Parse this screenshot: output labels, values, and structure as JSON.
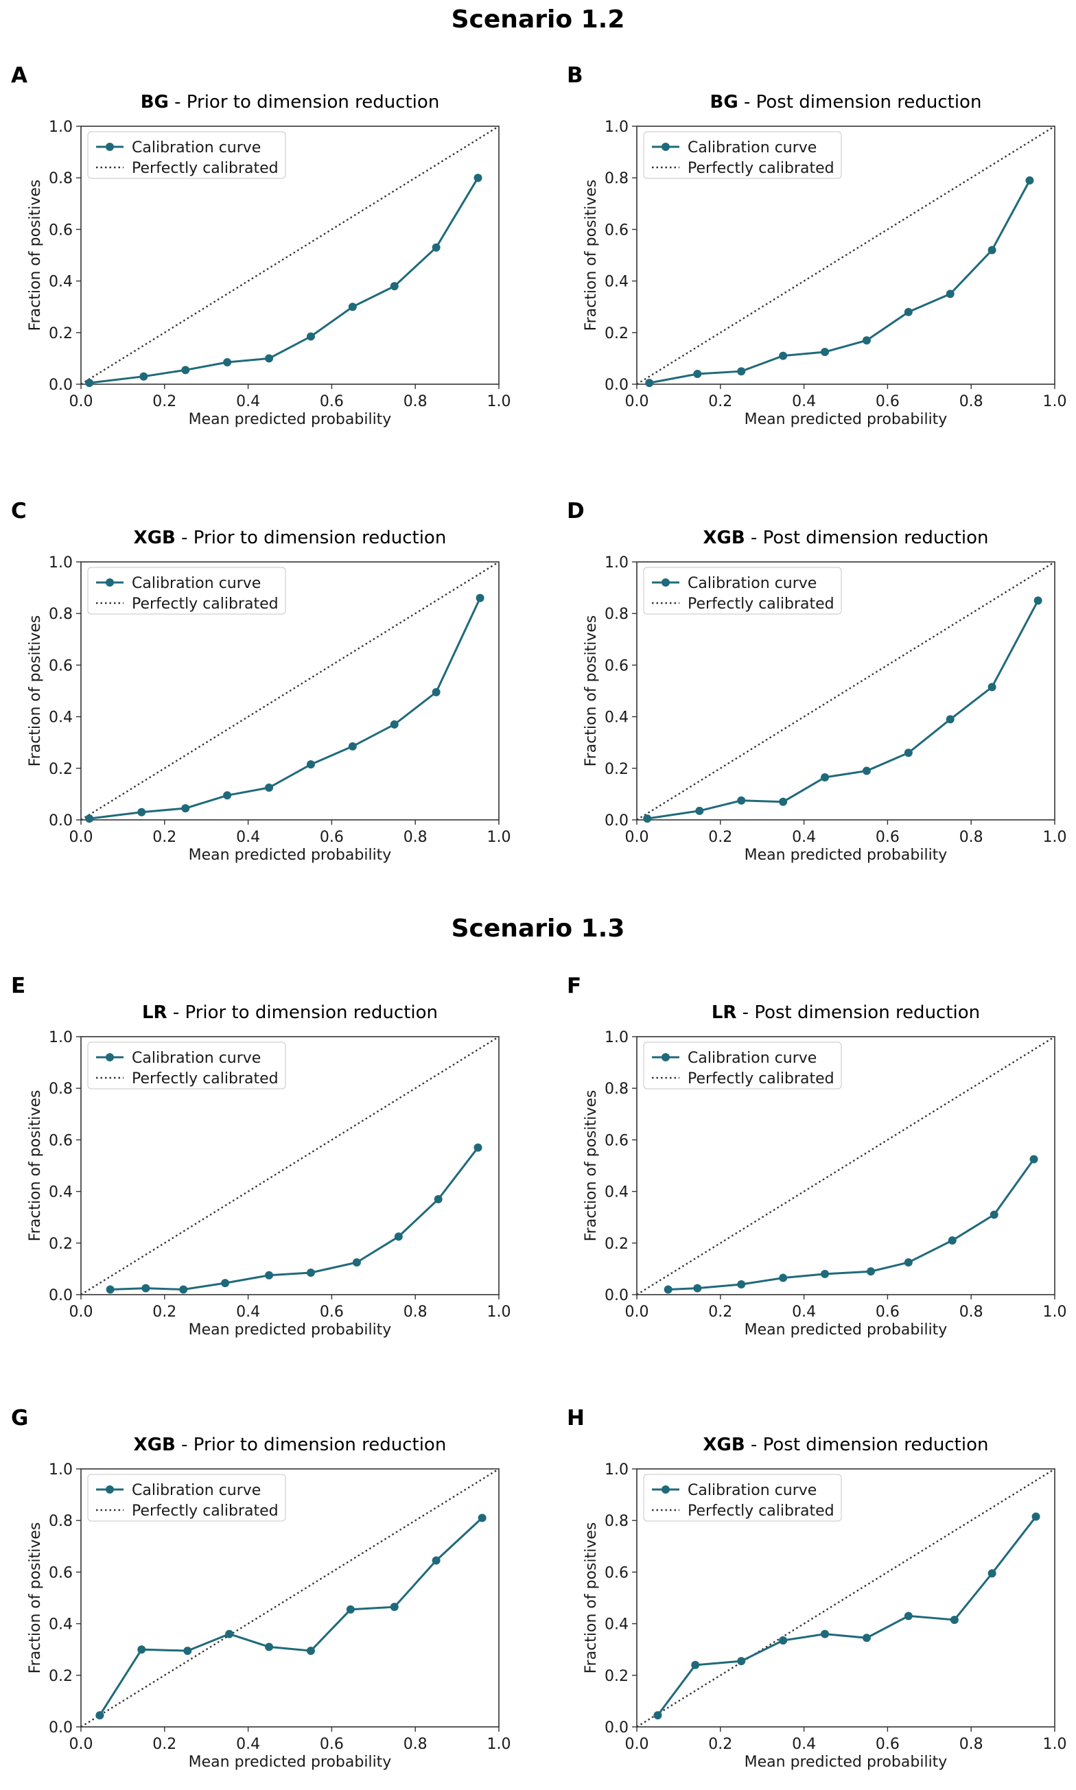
{
  "scenarios": [
    {
      "title": "Scenario 1.2"
    },
    {
      "title": "Scenario 1.3"
    }
  ],
  "colors": {
    "curve": "#1f6a7a",
    "diagonal": "#333333",
    "axes": "#333333"
  },
  "chart_data": [
    {
      "type": "line",
      "panel": "A",
      "title_model": "BG",
      "title_rest": " - Prior to dimension reduction",
      "xlabel": "Mean predicted probability",
      "ylabel": "Fraction of positives",
      "xlim": [
        0.0,
        1.0
      ],
      "ylim": [
        0.0,
        1.0
      ],
      "xticks": [
        "0.0",
        "0.2",
        "0.4",
        "0.6",
        "0.8",
        "1.0"
      ],
      "yticks": [
        "0.0",
        "0.2",
        "0.4",
        "0.6",
        "0.8",
        "1.0"
      ],
      "legend": [
        "Calibration curve",
        "Perfectly calibrated"
      ],
      "legend_position": "upper-left",
      "series": [
        {
          "name": "Calibration curve",
          "x": [
            0.02,
            0.15,
            0.25,
            0.35,
            0.45,
            0.55,
            0.65,
            0.75,
            0.85,
            0.95
          ],
          "y": [
            0.005,
            0.03,
            0.055,
            0.085,
            0.1,
            0.185,
            0.3,
            0.38,
            0.53,
            0.8
          ]
        }
      ]
    },
    {
      "type": "line",
      "panel": "B",
      "title_model": "BG",
      "title_rest": " - Post dimension reduction",
      "xlabel": "Mean predicted probability",
      "ylabel": "Fraction of positives",
      "xlim": [
        0.0,
        1.0
      ],
      "ylim": [
        0.0,
        1.0
      ],
      "xticks": [
        "0.0",
        "0.2",
        "0.4",
        "0.6",
        "0.8",
        "1.0"
      ],
      "yticks": [
        "0.0",
        "0.2",
        "0.4",
        "0.6",
        "0.8",
        "1.0"
      ],
      "legend": [
        "Calibration curve",
        "Perfectly calibrated"
      ],
      "legend_position": "upper-left",
      "series": [
        {
          "name": "Calibration curve",
          "x": [
            0.03,
            0.145,
            0.25,
            0.35,
            0.45,
            0.55,
            0.65,
            0.75,
            0.85,
            0.94
          ],
          "y": [
            0.005,
            0.04,
            0.05,
            0.11,
            0.125,
            0.17,
            0.28,
            0.35,
            0.52,
            0.79
          ]
        }
      ]
    },
    {
      "type": "line",
      "panel": "C",
      "title_model": "XGB",
      "title_rest": " - Prior to dimension reduction",
      "xlabel": "Mean predicted probability",
      "ylabel": "Fraction of positives",
      "xlim": [
        0.0,
        1.0
      ],
      "ylim": [
        0.0,
        1.0
      ],
      "xticks": [
        "0.0",
        "0.2",
        "0.4",
        "0.6",
        "0.8",
        "1.0"
      ],
      "yticks": [
        "0.0",
        "0.2",
        "0.4",
        "0.6",
        "0.8",
        "1.0"
      ],
      "legend": [
        "Calibration curve",
        "Perfectly calibrated"
      ],
      "legend_position": "upper-left",
      "series": [
        {
          "name": "Calibration curve",
          "x": [
            0.02,
            0.145,
            0.25,
            0.35,
            0.45,
            0.55,
            0.65,
            0.75,
            0.85,
            0.955
          ],
          "y": [
            0.005,
            0.03,
            0.045,
            0.095,
            0.125,
            0.215,
            0.285,
            0.37,
            0.495,
            0.86
          ]
        }
      ]
    },
    {
      "type": "line",
      "panel": "D",
      "title_model": "XGB",
      "title_rest": " - Post dimension reduction",
      "xlabel": "Mean predicted probability",
      "ylabel": "Fraction of positives",
      "xlim": [
        0.0,
        1.0
      ],
      "ylim": [
        0.0,
        1.0
      ],
      "xticks": [
        "0.0",
        "0.2",
        "0.4",
        "0.6",
        "0.8",
        "1.0"
      ],
      "yticks": [
        "0.0",
        "0.2",
        "0.4",
        "0.6",
        "0.8",
        "1.0"
      ],
      "legend": [
        "Calibration curve",
        "Perfectly calibrated"
      ],
      "legend_position": "upper-left",
      "series": [
        {
          "name": "Calibration curve",
          "x": [
            0.025,
            0.15,
            0.25,
            0.35,
            0.45,
            0.55,
            0.65,
            0.75,
            0.85,
            0.96
          ],
          "y": [
            0.005,
            0.035,
            0.075,
            0.07,
            0.165,
            0.19,
            0.26,
            0.39,
            0.515,
            0.85
          ]
        }
      ]
    },
    {
      "type": "line",
      "panel": "E",
      "title_model": "LR",
      "title_rest": " - Prior to dimension reduction",
      "xlabel": "Mean predicted probability",
      "ylabel": "Fraction of positives",
      "xlim": [
        0.0,
        1.0
      ],
      "ylim": [
        0.0,
        1.0
      ],
      "xticks": [
        "0.0",
        "0.2",
        "0.4",
        "0.6",
        "0.8",
        "1.0"
      ],
      "yticks": [
        "0.0",
        "0.2",
        "0.4",
        "0.6",
        "0.8",
        "1.0"
      ],
      "legend": [
        "Calibration curve",
        "Perfectly calibrated"
      ],
      "legend_position": "upper-left",
      "series": [
        {
          "name": "Calibration curve",
          "x": [
            0.07,
            0.155,
            0.245,
            0.345,
            0.45,
            0.55,
            0.66,
            0.76,
            0.855,
            0.95
          ],
          "y": [
            0.02,
            0.025,
            0.02,
            0.045,
            0.075,
            0.085,
            0.125,
            0.225,
            0.37,
            0.57
          ]
        }
      ]
    },
    {
      "type": "line",
      "panel": "F",
      "title_model": "LR",
      "title_rest": " - Post dimension reduction",
      "xlabel": "Mean predicted probability",
      "ylabel": "Fraction of positives",
      "xlim": [
        0.0,
        1.0
      ],
      "ylim": [
        0.0,
        1.0
      ],
      "xticks": [
        "0.0",
        "0.2",
        "0.4",
        "0.6",
        "0.8",
        "1.0"
      ],
      "yticks": [
        "0.0",
        "0.2",
        "0.4",
        "0.6",
        "0.8",
        "1.0"
      ],
      "legend": [
        "Calibration curve",
        "Perfectly calibrated"
      ],
      "legend_position": "upper-left",
      "series": [
        {
          "name": "Calibration curve",
          "x": [
            0.075,
            0.145,
            0.25,
            0.35,
            0.45,
            0.56,
            0.65,
            0.755,
            0.855,
            0.95
          ],
          "y": [
            0.02,
            0.025,
            0.04,
            0.065,
            0.08,
            0.09,
            0.125,
            0.21,
            0.31,
            0.525
          ]
        }
      ]
    },
    {
      "type": "line",
      "panel": "G",
      "title_model": "XGB",
      "title_rest": " - Prior to dimension reduction",
      "xlabel": "Mean predicted probability",
      "ylabel": "Fraction of positives",
      "xlim": [
        0.0,
        1.0
      ],
      "ylim": [
        0.0,
        1.0
      ],
      "xticks": [
        "0.0",
        "0.2",
        "0.4",
        "0.6",
        "0.8",
        "1.0"
      ],
      "yticks": [
        "0.0",
        "0.2",
        "0.4",
        "0.6",
        "0.8",
        "1.0"
      ],
      "legend": [
        "Calibration curve",
        "Perfectly calibrated"
      ],
      "legend_position": "upper-left",
      "series": [
        {
          "name": "Calibration curve",
          "x": [
            0.045,
            0.145,
            0.255,
            0.355,
            0.45,
            0.55,
            0.645,
            0.75,
            0.85,
            0.96
          ],
          "y": [
            0.045,
            0.3,
            0.295,
            0.36,
            0.31,
            0.295,
            0.455,
            0.465,
            0.645,
            0.81
          ]
        }
      ]
    },
    {
      "type": "line",
      "panel": "H",
      "title_model": "XGB",
      "title_rest": " - Post dimension reduction",
      "xlabel": "Mean predicted probability",
      "ylabel": "Fraction of positives",
      "xlim": [
        0.0,
        1.0
      ],
      "ylim": [
        0.0,
        1.0
      ],
      "xticks": [
        "0.0",
        "0.2",
        "0.4",
        "0.6",
        "0.8",
        "1.0"
      ],
      "yticks": [
        "0.0",
        "0.2",
        "0.4",
        "0.6",
        "0.8",
        "1.0"
      ],
      "legend": [
        "Calibration curve",
        "Perfectly calibrated"
      ],
      "legend_position": "upper-left",
      "series": [
        {
          "name": "Calibration curve",
          "x": [
            0.05,
            0.14,
            0.25,
            0.35,
            0.45,
            0.55,
            0.65,
            0.76,
            0.85,
            0.955
          ],
          "y": [
            0.045,
            0.24,
            0.255,
            0.335,
            0.36,
            0.345,
            0.43,
            0.415,
            0.595,
            0.815
          ]
        }
      ]
    }
  ]
}
